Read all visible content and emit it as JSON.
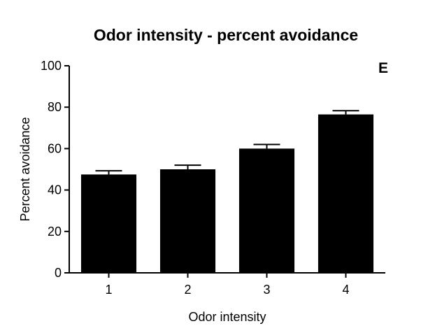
{
  "chart_data": {
    "type": "bar",
    "title": "Odor intensity - percent avoidance",
    "panel_label": "E",
    "xlabel": "Odor intensity",
    "ylabel": "Percent avoidance",
    "categories": [
      "1",
      "2",
      "3",
      "4"
    ],
    "values": [
      47.5,
      50,
      60,
      76.5
    ],
    "error_upper": [
      1.8,
      2.0,
      2.0,
      1.8
    ],
    "ylim": [
      0,
      100
    ],
    "yticks": [
      "0",
      "20",
      "40",
      "60",
      "80",
      "100"
    ],
    "grid": false,
    "legend": false,
    "bar_color": "#000000",
    "error_bar_color": "#000000"
  }
}
